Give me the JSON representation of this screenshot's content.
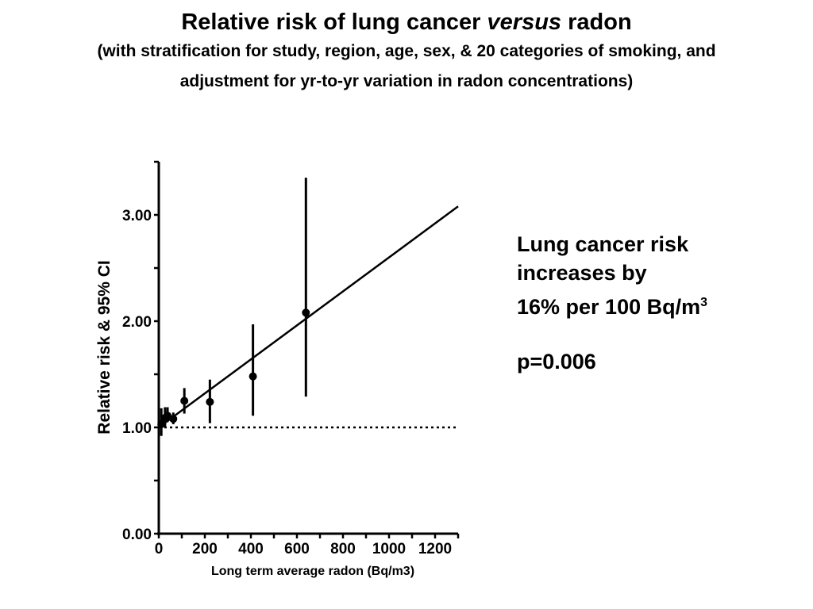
{
  "slide": {
    "title_prefix": "Relative risk of lung cancer ",
    "title_italic": "versus",
    "title_suffix": " radon",
    "subtitle_line1": "(with stratification for study, region, age, sex, & 20 categories of smoking, and",
    "subtitle_line2": "adjustment for yr-to-yr variation in radon concentrations)",
    "note_line1": "Lung cancer risk",
    "note_line2": "increases by",
    "note_line3": "16% per 100 Bq/m",
    "note_line3_sup": "3",
    "note_pvalue": "p=0.006"
  },
  "chart_data": {
    "type": "scatter",
    "title": "",
    "xlabel": "Long term average radon (Bq/m3)",
    "ylabel": "Relative risk & 95% CI",
    "xlim": [
      0,
      1300
    ],
    "ylim": [
      0,
      3.5
    ],
    "x_ticks": [
      "0",
      "200",
      "400",
      "600",
      "800",
      "1000",
      "1200"
    ],
    "y_ticks": [
      "0.00",
      "1.00",
      "2.00",
      "3.00"
    ],
    "grid": false,
    "points": [
      {
        "x": 11,
        "y": 1.03,
        "ci_low": 0.92,
        "ci_high": 1.18
      },
      {
        "x": 27,
        "y": 1.09,
        "ci_low": 1.0,
        "ci_high": 1.19
      },
      {
        "x": 38,
        "y": 1.11,
        "ci_low": 1.05,
        "ci_high": 1.19
      },
      {
        "x": 63,
        "y": 1.08,
        "ci_low": 1.03,
        "ci_high": 1.14
      },
      {
        "x": 111,
        "y": 1.25,
        "ci_low": 1.13,
        "ci_high": 1.37
      },
      {
        "x": 222,
        "y": 1.24,
        "ci_low": 1.04,
        "ci_high": 1.45
      },
      {
        "x": 409,
        "y": 1.48,
        "ci_low": 1.11,
        "ci_high": 1.97
      },
      {
        "x": 639,
        "y": 2.08,
        "ci_low": 1.29,
        "ci_high": 3.35
      }
    ],
    "fit_line": {
      "intercept": 1.0,
      "slope_per_bq": 0.0016
    },
    "reference_line": {
      "y": 1.0,
      "style": "dotted"
    },
    "color": "#000000"
  }
}
